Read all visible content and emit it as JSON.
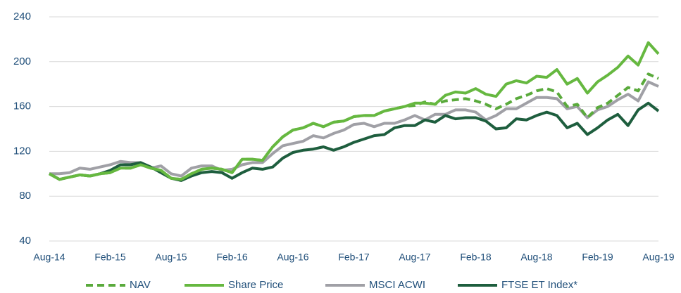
{
  "chart_data": {
    "type": "line",
    "categories": [
      "Aug-14",
      null,
      null,
      null,
      null,
      null,
      "Feb-15",
      null,
      null,
      null,
      null,
      null,
      "Aug-15",
      null,
      null,
      null,
      null,
      null,
      "Feb-16",
      null,
      null,
      null,
      null,
      null,
      "Aug-16",
      null,
      null,
      null,
      null,
      null,
      "Feb-17",
      null,
      null,
      null,
      null,
      null,
      "Aug-17",
      null,
      null,
      null,
      null,
      null,
      "Feb-18",
      null,
      null,
      null,
      null,
      null,
      "Aug-18",
      null,
      null,
      null,
      null,
      null,
      "Feb-19",
      null,
      null,
      null,
      null,
      null,
      "Aug-19"
    ],
    "series": [
      {
        "name": "NAV",
        "color": "#5aaa3c",
        "dashed": true,
        "values": [
          100,
          95,
          97,
          99,
          98,
          100,
          101,
          105,
          105,
          108,
          105,
          103,
          96,
          95,
          100,
          104,
          105,
          104,
          101,
          113,
          113,
          112,
          124,
          133,
          139,
          141,
          145,
          142,
          146,
          147,
          151,
          152,
          152,
          156,
          158,
          160,
          161,
          164,
          162,
          165,
          166,
          167,
          165,
          162,
          158,
          162,
          167,
          170,
          174,
          176,
          173,
          160,
          162,
          150,
          159,
          163,
          170,
          177,
          174,
          189,
          185
        ]
      },
      {
        "name": "Share Price",
        "color": "#66b840",
        "dashed": false,
        "values": [
          100,
          95,
          97,
          99,
          98,
          100,
          101,
          105,
          105,
          108,
          105,
          103,
          96,
          95,
          100,
          104,
          105,
          104,
          101,
          113,
          113,
          112,
          124,
          133,
          139,
          141,
          145,
          142,
          146,
          147,
          151,
          152,
          152,
          156,
          158,
          160,
          163,
          163,
          162,
          170,
          173,
          172,
          176,
          171,
          169,
          180,
          183,
          181,
          187,
          186,
          193,
          180,
          185,
          172,
          182,
          188,
          195,
          205,
          197,
          217,
          207
        ]
      },
      {
        "name": "MSCI ACWI",
        "color": "#a0a0a6",
        "dashed": false,
        "values": [
          100,
          100,
          101,
          105,
          104,
          106,
          108,
          111,
          110,
          110,
          105,
          107,
          100,
          98,
          105,
          107,
          107,
          103,
          104,
          108,
          110,
          110,
          118,
          125,
          127,
          129,
          134,
          132,
          136,
          139,
          144,
          145,
          142,
          145,
          145,
          148,
          152,
          148,
          153,
          153,
          157,
          157,
          155,
          148,
          152,
          158,
          158,
          163,
          168,
          168,
          167,
          158,
          160,
          150,
          157,
          160,
          166,
          171,
          165,
          182,
          178
        ]
      },
      {
        "name": "FTSE ET Index*",
        "color": "#1e5e3e",
        "dashed": false,
        "values": [
          100,
          95,
          97,
          99,
          98,
          100,
          103,
          108,
          108,
          110,
          106,
          101,
          96,
          94,
          98,
          101,
          102,
          101,
          96,
          101,
          105,
          104,
          106,
          114,
          119,
          121,
          122,
          124,
          121,
          124,
          128,
          131,
          134,
          135,
          141,
          143,
          143,
          148,
          146,
          152,
          149,
          150,
          150,
          147,
          140,
          141,
          149,
          148,
          152,
          155,
          152,
          141,
          145,
          135,
          141,
          148,
          153,
          143,
          157,
          163,
          156
        ]
      }
    ],
    "ylim": [
      40,
      240
    ],
    "yticks": [
      40,
      80,
      120,
      160,
      200,
      240
    ],
    "grid": true
  }
}
